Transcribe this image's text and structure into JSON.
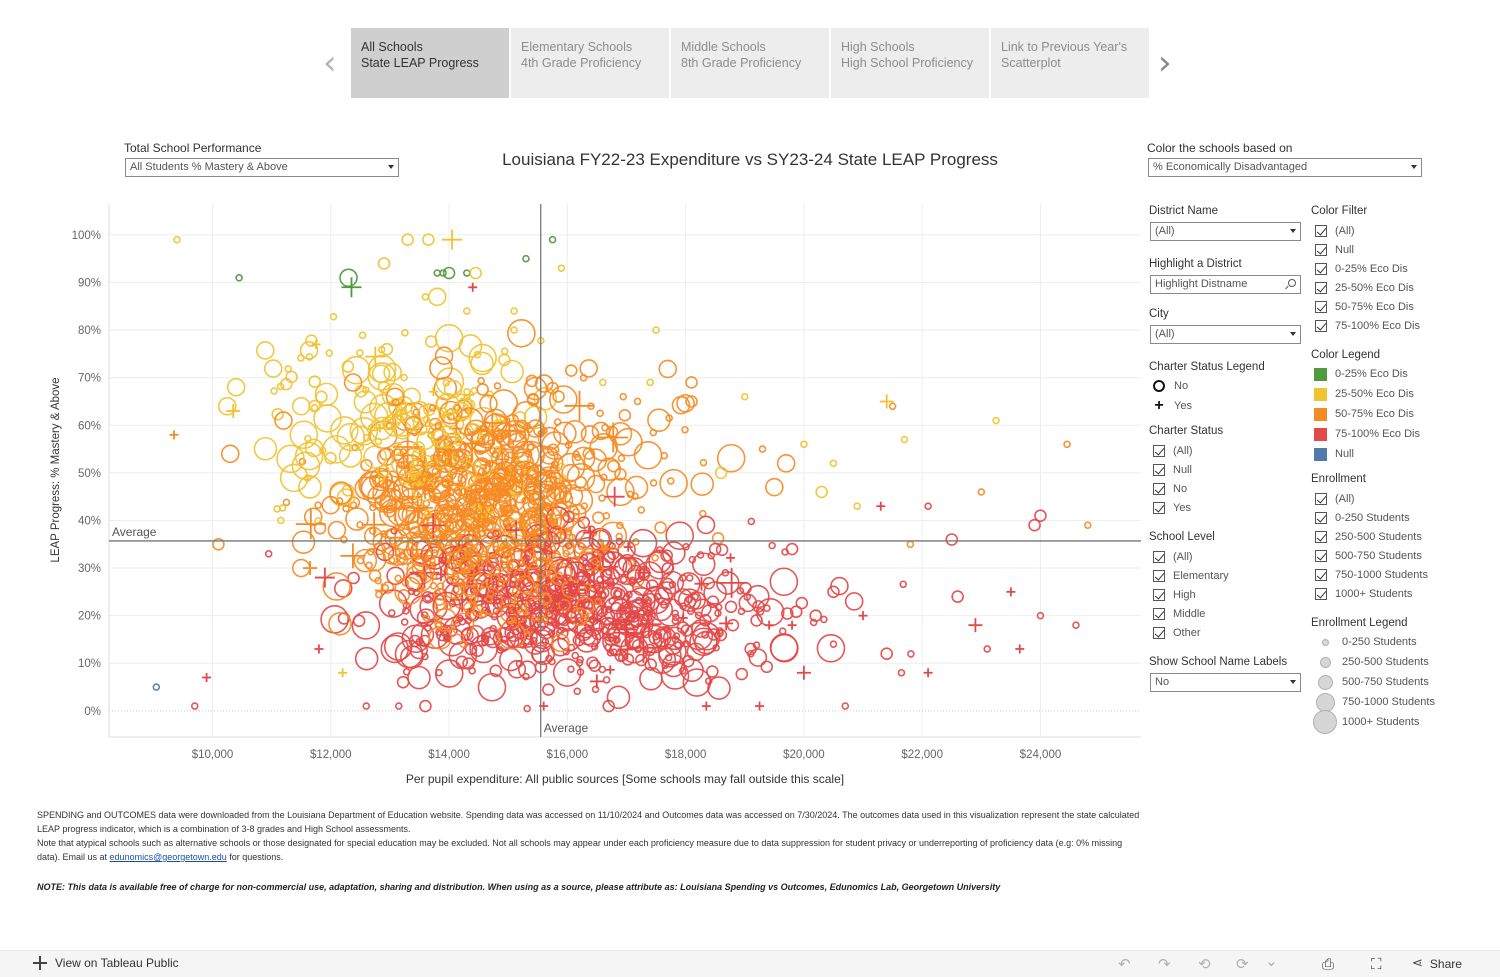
{
  "nav": {
    "tabs": [
      {
        "line1": "All Schools",
        "line2": "State LEAP Progress",
        "active": true
      },
      {
        "line1": "Elementary Schools",
        "line2": "4th Grade Proficiency",
        "active": false
      },
      {
        "line1": "Middle Schools",
        "line2": "8th Grade Proficiency",
        "active": false
      },
      {
        "line1": "High Schools",
        "line2": "High School Proficiency",
        "active": false
      },
      {
        "line1": "Link to Previous Year's",
        "line2": "Scatterplot",
        "active": false
      }
    ],
    "prev_arrow": "‹",
    "next_arrow": "›"
  },
  "controls": {
    "performance_label": "Total School Performance",
    "performance_value": "All Students % Mastery & Above",
    "color_label": "Color the schools based on",
    "color_value": "% Economically Disadvantaged"
  },
  "filters": {
    "district_label": "District Name",
    "district_value": "(All)",
    "highlight_label": "Highlight a District",
    "highlight_placeholder": "Highlight Distname",
    "city_label": "City",
    "city_value": "(All)",
    "charter_legend_label": "Charter Status Legend",
    "charter_legend": [
      {
        "shape": "circle",
        "label": "No"
      },
      {
        "shape": "plus",
        "label": "Yes"
      }
    ],
    "charter_status_label": "Charter Status",
    "charter_status": [
      "(All)",
      "Null",
      "No",
      "Yes"
    ],
    "school_level_label": "School Level",
    "school_level": [
      "(All)",
      "Elementary",
      "High",
      "Middle",
      "Other"
    ],
    "labels_toggle_label": "Show School Name Labels",
    "labels_toggle_value": "No",
    "color_filter_label": "Color Filter",
    "color_filter": [
      "(All)",
      "Null",
      "0-25% Eco Dis",
      "25-50% Eco Dis",
      "50-75% Eco Dis",
      "75-100% Eco Dis"
    ],
    "color_legend_label": "Color Legend",
    "color_legend": [
      {
        "label": "0-25% Eco Dis",
        "color": "#4e9a3d"
      },
      {
        "label": "25-50% Eco Dis",
        "color": "#f1c232"
      },
      {
        "label": "50-75% Eco Dis",
        "color": "#f58b25"
      },
      {
        "label": "75-100% Eco Dis",
        "color": "#e34948"
      },
      {
        "label": "Null",
        "color": "#4f7aab"
      }
    ],
    "enrollment_label": "Enrollment",
    "enrollment": [
      "(All)",
      "0-250 Students",
      "250-500 Students",
      "500-750 Students",
      "750-1000 Students",
      "1000+ Students"
    ],
    "enrollment_legend_label": "Enrollment Legend",
    "enrollment_legend": [
      "0-250 Students",
      "250-500 Students",
      "500-750 Students",
      "750-1000 Students",
      "1000+ Students"
    ]
  },
  "chart_data": {
    "type": "scatter",
    "title": "Louisiana FY22-23 Expenditure vs SY23-24 State LEAP Progress",
    "xlabel": "Per pupil expenditure: All public sources [Some schools may fall outside this scale]",
    "ylabel": "LEAP Progress: % Mastery & Above",
    "xlim": [
      8250,
      25700
    ],
    "ylim": [
      -5.5,
      106.5
    ],
    "x_ticks": [
      10000,
      12000,
      14000,
      16000,
      18000,
      20000,
      22000,
      24000
    ],
    "x_tick_labels": [
      "$10,000",
      "$12,000",
      "$14,000",
      "$16,000",
      "$18,000",
      "$20,000",
      "$22,000",
      "$24,000"
    ],
    "y_ticks": [
      0,
      10,
      20,
      30,
      40,
      50,
      60,
      70,
      80,
      90,
      100
    ],
    "y_tick_labels": [
      "0%",
      "10%",
      "20%",
      "30%",
      "40%",
      "50%",
      "60%",
      "70%",
      "80%",
      "90%",
      "100%"
    ],
    "avg_x": 15550,
    "avg_y": 35.7,
    "avg_x_label": "Average",
    "avg_y_label": "Average",
    "colors": {
      "green": "#4e9a3d",
      "yellow": "#f1c232",
      "orange": "#f58b25",
      "red": "#e34948",
      "blue": "#4f7aab"
    },
    "enrollment_size_classes": [
      1,
      2,
      3,
      4,
      5
    ],
    "series_fields": [
      "expenditure",
      "pct_mastery",
      "color_group",
      "enrollment_class",
      "charter"
    ],
    "points": [
      [
        9400,
        99,
        "yellow",
        1,
        0
      ],
      [
        10450,
        91,
        "green",
        1,
        0
      ],
      [
        12300,
        91,
        "green",
        3,
        0
      ],
      [
        12350,
        89,
        "green",
        3,
        1
      ],
      [
        13300,
        99,
        "yellow",
        2,
        0
      ],
      [
        13650,
        99,
        "yellow",
        2,
        0
      ],
      [
        14050,
        99,
        "yellow",
        3,
        1
      ],
      [
        15750,
        99,
        "green",
        1,
        0
      ],
      [
        13800,
        92,
        "green",
        1,
        0
      ],
      [
        13900,
        92,
        "green",
        1,
        0
      ],
      [
        14000,
        92,
        "green",
        2,
        0
      ],
      [
        14300,
        92,
        "green",
        1,
        0
      ],
      [
        14450,
        92,
        "yellow",
        2,
        0
      ],
      [
        15300,
        95,
        "green",
        1,
        0
      ],
      [
        15900,
        93,
        "yellow",
        1,
        0
      ],
      [
        14400,
        89,
        "red",
        1,
        1
      ],
      [
        12900,
        94,
        "yellow",
        2,
        0
      ],
      [
        13600,
        87,
        "yellow",
        1,
        0
      ],
      [
        13800,
        87,
        "yellow",
        3,
        0
      ],
      [
        15100,
        84,
        "yellow",
        1,
        0
      ],
      [
        14300,
        84,
        "yellow",
        1,
        0
      ],
      [
        11750,
        77,
        "yellow",
        1,
        1
      ],
      [
        12950,
        76,
        "yellow",
        2,
        0
      ],
      [
        15100,
        80,
        "yellow",
        1,
        0
      ],
      [
        17500,
        80,
        "yellow",
        1,
        0
      ],
      [
        10400,
        68,
        "yellow",
        3,
        0
      ],
      [
        10250,
        64,
        "yellow",
        3,
        0
      ],
      [
        10350,
        63,
        "yellow",
        2,
        1
      ],
      [
        9350,
        58,
        "orange",
        1,
        1
      ],
      [
        10300,
        54,
        "orange",
        3,
        0
      ],
      [
        11200,
        61,
        "orange",
        3,
        0
      ],
      [
        11500,
        64,
        "yellow",
        3,
        0
      ],
      [
        12500,
        58,
        "yellow",
        3,
        0
      ],
      [
        13400,
        60,
        "orange",
        3,
        0
      ],
      [
        14200,
        63,
        "yellow",
        3,
        0
      ],
      [
        12900,
        68,
        "yellow",
        2,
        0
      ],
      [
        16600,
        69,
        "yellow",
        1,
        0
      ],
      [
        17400,
        69,
        "yellow",
        1,
        0
      ],
      [
        18100,
        69,
        "orange",
        2,
        0
      ],
      [
        18100,
        65,
        "orange",
        2,
        0
      ],
      [
        19000,
        66,
        "yellow",
        1,
        0
      ],
      [
        21400,
        65,
        "yellow",
        2,
        1
      ],
      [
        21500,
        64,
        "orange",
        1,
        0
      ],
      [
        23250,
        61,
        "yellow",
        1,
        0
      ],
      [
        24450,
        56,
        "orange",
        1,
        0
      ],
      [
        21700,
        57,
        "yellow",
        1,
        0
      ],
      [
        20000,
        56,
        "yellow",
        1,
        0
      ],
      [
        19300,
        55,
        "orange",
        1,
        0
      ],
      [
        18600,
        50,
        "yellow",
        2,
        0
      ],
      [
        19700,
        52,
        "orange",
        3,
        0
      ],
      [
        19500,
        47,
        "orange",
        3,
        0
      ],
      [
        23000,
        46,
        "orange",
        1,
        0
      ],
      [
        20500,
        52,
        "yellow",
        1,
        0
      ],
      [
        20300,
        46,
        "yellow",
        2,
        0
      ],
      [
        24000,
        41,
        "red",
        2,
        0
      ],
      [
        23900,
        39,
        "red",
        2,
        0
      ],
      [
        24800,
        39,
        "orange",
        1,
        0
      ],
      [
        22100,
        43,
        "red",
        1,
        0
      ],
      [
        21800,
        35,
        "orange",
        1,
        0
      ],
      [
        20900,
        43,
        "yellow",
        1,
        0
      ],
      [
        21300,
        43,
        "red",
        1,
        1
      ],
      [
        10100,
        35,
        "orange",
        2,
        0
      ],
      [
        10950,
        33,
        "red",
        1,
        0
      ],
      [
        11500,
        30,
        "orange",
        3,
        0
      ],
      [
        11650,
        30,
        "orange",
        2,
        1
      ],
      [
        11900,
        28,
        "red",
        3,
        1
      ],
      [
        11800,
        13,
        "red",
        1,
        1
      ],
      [
        9900,
        7,
        "red",
        1,
        1
      ],
      [
        9700,
        1,
        "red",
        1,
        0
      ],
      [
        9050,
        5,
        "blue",
        1,
        0
      ],
      [
        12200,
        8,
        "yellow",
        1,
        1
      ],
      [
        12600,
        1,
        "red",
        1,
        0
      ],
      [
        13150,
        1,
        "red",
        1,
        0
      ],
      [
        13600,
        1,
        "red",
        2,
        0
      ],
      [
        16700,
        1,
        "red",
        2,
        0
      ],
      [
        18350,
        1,
        "red",
        1,
        1
      ],
      [
        15600,
        1,
        "red",
        1,
        1
      ],
      [
        19250,
        1,
        "red",
        1,
        1
      ],
      [
        20700,
        1,
        "red",
        1,
        0
      ],
      [
        22500,
        36,
        "red",
        2,
        0
      ],
      [
        22600,
        24,
        "red",
        2,
        0
      ],
      [
        22900,
        18,
        "red",
        2,
        1
      ],
      [
        23500,
        25,
        "red",
        1,
        1
      ],
      [
        24000,
        20,
        "red",
        1,
        0
      ],
      [
        24600,
        18,
        "red",
        1,
        0
      ],
      [
        23100,
        13,
        "red",
        1,
        0
      ],
      [
        23650,
        13,
        "red",
        1,
        1
      ],
      [
        22100,
        8,
        "red",
        1,
        1
      ],
      [
        21650,
        8,
        "red",
        1,
        0
      ],
      [
        21400,
        12,
        "red",
        2,
        0
      ],
      [
        21000,
        20,
        "red",
        1,
        1
      ],
      [
        20500,
        25,
        "red",
        2,
        0
      ],
      [
        20850,
        23,
        "red",
        3,
        0
      ],
      [
        19200,
        19,
        "red",
        2,
        0
      ],
      [
        19800,
        18,
        "red",
        1,
        1
      ],
      [
        20200,
        20,
        "red",
        2,
        0
      ],
      [
        20500,
        14,
        "red",
        1,
        0
      ],
      [
        20000,
        8,
        "red",
        2,
        1
      ],
      [
        19800,
        34,
        "red",
        2,
        0
      ],
      [
        18500,
        34,
        "red",
        2,
        0
      ],
      [
        16300,
        22,
        "orange",
        3,
        0
      ],
      [
        16800,
        45,
        "red",
        3,
        1
      ],
      [
        17300,
        29,
        "red",
        2,
        1
      ],
      [
        18800,
        18,
        "red",
        2,
        0
      ],
      [
        19100,
        13,
        "red",
        2,
        0
      ]
    ],
    "cloud_note": "dense cluster of ~1300 additional schools centered near $14,000-$16,500 and 15%-50%"
  },
  "notes": {
    "line1": "SPENDING and OUTCOMES data were downloaded from the Louisiana Department of Education website. Spending data was accessed on 11/10/2024 and Outcomes data was accessed on 7/30/2024. The outcomes data used in this visualization represent the state calculated LEAP progress indicator, which is a combination of 3-8 grades and High School assessments.",
    "line2": "Note that atypical schools such as alternative schools or those designated for special education may be excluded. Not all schools may appear under each proficiency measure due to data suppression for student privacy or underreporting of proficiency data (e.g: 0% missing data). Email us at",
    "email": "edunomics@georgetown.edu",
    "line2_end": "for questions.",
    "attribution": "NOTE: This data is available free of charge for non-commercial use, adaptation, sharing and distribution. When using as a source, please attribute as: Louisiana Spending vs Outcomes, Edunomics Lab, Georgetown University"
  },
  "footer": {
    "view_link": "View on Tableau Public",
    "share": "Share",
    "undo": "↶",
    "redo": "↷",
    "revert": "⟲",
    "refresh": "⟳",
    "pause": "⌄",
    "download": "⎙",
    "fullscreen": "⛶",
    "share_icon": "⋖"
  }
}
